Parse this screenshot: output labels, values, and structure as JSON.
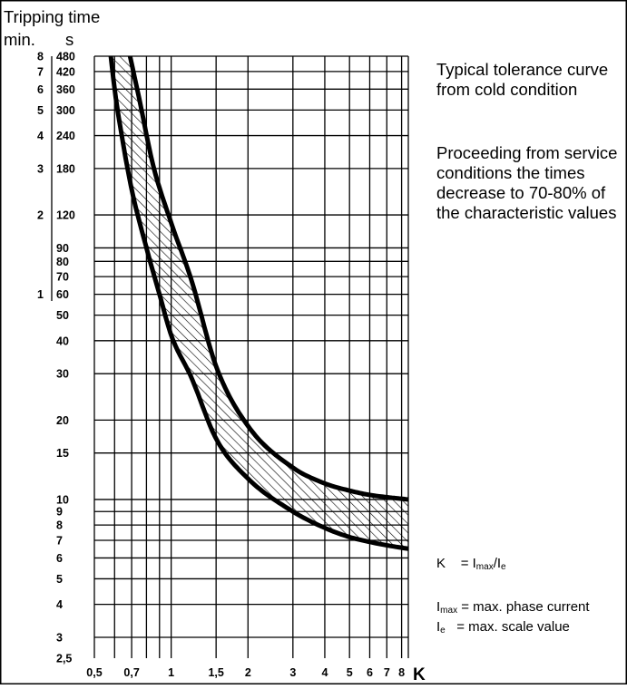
{
  "chart_data": {
    "type": "area",
    "title": "Tripping time",
    "ylabel_minutes": "min.",
    "ylabel_seconds": "s",
    "xlabel": "K",
    "x_scale": "log",
    "y_scale": "log",
    "xlim": [
      0.5,
      8.5
    ],
    "ylim": [
      2.5,
      480
    ],
    "x_ticks": [
      {
        "value": 0.5,
        "label": "0,5"
      },
      {
        "value": 0.7,
        "label": "0,7"
      },
      {
        "value": 1,
        "label": "1"
      },
      {
        "value": 1.5,
        "label": "1,5"
      },
      {
        "value": 2,
        "label": "2"
      },
      {
        "value": 3,
        "label": "3"
      },
      {
        "value": 4,
        "label": "4"
      },
      {
        "value": 5,
        "label": "5"
      },
      {
        "value": 6,
        "label": "6"
      },
      {
        "value": 7,
        "label": "7"
      },
      {
        "value": 8,
        "label": "8"
      }
    ],
    "x_grid": [
      0.5,
      0.6,
      0.7,
      0.8,
      0.9,
      1,
      1.5,
      2,
      3,
      4,
      5,
      6,
      7,
      8,
      8.5
    ],
    "y_ticks_seconds": [
      {
        "value": 480,
        "label": "480"
      },
      {
        "value": 420,
        "label": "420"
      },
      {
        "value": 360,
        "label": "360"
      },
      {
        "value": 300,
        "label": "300"
      },
      {
        "value": 240,
        "label": "240"
      },
      {
        "value": 180,
        "label": "180"
      },
      {
        "value": 120,
        "label": "120"
      },
      {
        "value": 90,
        "label": "90"
      },
      {
        "value": 80,
        "label": "80"
      },
      {
        "value": 70,
        "label": "70"
      },
      {
        "value": 60,
        "label": "60"
      },
      {
        "value": 50,
        "label": "50"
      },
      {
        "value": 40,
        "label": "40"
      },
      {
        "value": 30,
        "label": "30"
      },
      {
        "value": 20,
        "label": "20"
      },
      {
        "value": 15,
        "label": "15"
      },
      {
        "value": 10,
        "label": "10"
      },
      {
        "value": 9,
        "label": "9"
      },
      {
        "value": 8,
        "label": "8"
      },
      {
        "value": 7,
        "label": "7"
      },
      {
        "value": 6,
        "label": "6"
      },
      {
        "value": 5,
        "label": "5"
      },
      {
        "value": 4,
        "label": "4"
      },
      {
        "value": 3,
        "label": "3"
      },
      {
        "value": 2.5,
        "label": "2,5"
      }
    ],
    "y_ticks_minutes": [
      {
        "value": 480,
        "label": "8"
      },
      {
        "value": 420,
        "label": "7"
      },
      {
        "value": 360,
        "label": "6"
      },
      {
        "value": 300,
        "label": "5"
      },
      {
        "value": 240,
        "label": "4"
      },
      {
        "value": 180,
        "label": "3"
      },
      {
        "value": 120,
        "label": "2"
      },
      {
        "value": 60,
        "label": "1"
      }
    ],
    "y_grid": [
      480,
      420,
      360,
      300,
      240,
      180,
      120,
      90,
      80,
      70,
      60,
      50,
      40,
      30,
      20,
      15,
      10,
      9,
      8,
      7,
      6,
      5,
      4,
      3
    ],
    "series": [
      {
        "role": "lower-limit",
        "points": [
          [
            0.58,
            480
          ],
          [
            0.6,
            360
          ],
          [
            0.65,
            220
          ],
          [
            0.7,
            150
          ],
          [
            0.8,
            90
          ],
          [
            0.9,
            60
          ],
          [
            1,
            42
          ],
          [
            1.2,
            29
          ],
          [
            1.5,
            17
          ],
          [
            2,
            12
          ],
          [
            3,
            9
          ],
          [
            4,
            7.8
          ],
          [
            5,
            7.2
          ],
          [
            6,
            6.9
          ],
          [
            7,
            6.7
          ],
          [
            8.5,
            6.5
          ]
        ]
      },
      {
        "role": "upper-limit",
        "points": [
          [
            0.69,
            480
          ],
          [
            0.75,
            330
          ],
          [
            0.85,
            185
          ],
          [
            1,
            112
          ],
          [
            1.2,
            68
          ],
          [
            1.5,
            32
          ],
          [
            2,
            19
          ],
          [
            3,
            13.2
          ],
          [
            4,
            11.5
          ],
          [
            5,
            10.8
          ],
          [
            6,
            10.4
          ],
          [
            7,
            10.2
          ],
          [
            8.5,
            10
          ]
        ]
      }
    ],
    "fill_between": "hatched",
    "grid": true
  },
  "notes": {
    "caption": "Typical tolerance curve from cold condition",
    "service_note": "Proceeding from service conditions the times decrease to 70-80% of the characteristic values"
  },
  "legend": {
    "k_symbol": "K",
    "k_eq": "=",
    "k_numerator": "I",
    "k_numerator_sub": "max",
    "k_slash": "/I",
    "k_denominator_sub": "e",
    "imax_symbol": "I",
    "imax_sub": "max",
    "imax_def": "= max. phase current",
    "ie_symbol": "I",
    "ie_sub": "e",
    "ie_def": "= max. scale value"
  }
}
